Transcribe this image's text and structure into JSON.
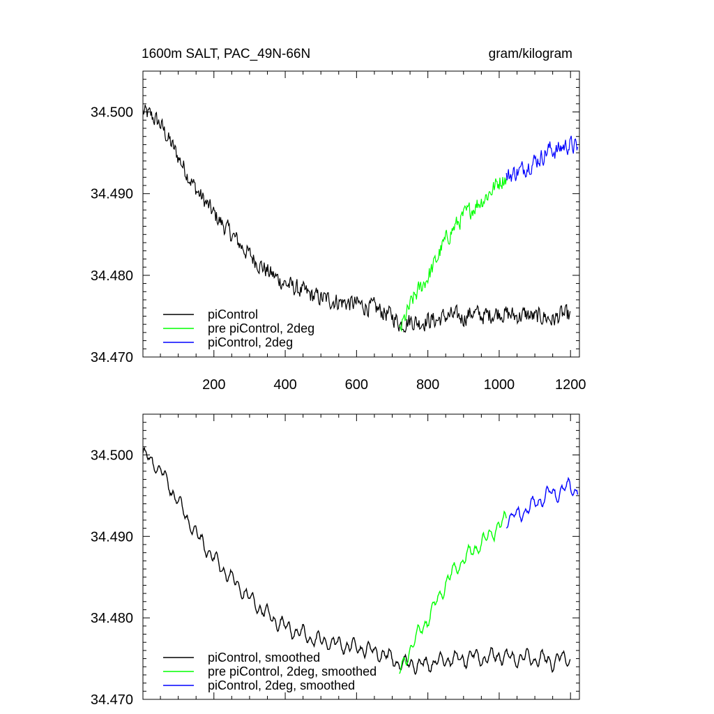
{
  "chart_data": [
    {
      "type": "line",
      "title": "1600m SALT, PAC_49N-66N",
      "units": "gram/kilogram",
      "xlim": [
        1,
        1225
      ],
      "ylim": [
        34.47,
        34.505
      ],
      "x_ticks": [
        200,
        400,
        600,
        800,
        1000,
        1200
      ],
      "x_tick_labels": [
        "200",
        "400",
        "600",
        "800",
        "1000",
        "1200"
      ],
      "y_ticks": [
        34.47,
        34.48,
        34.49,
        34.5
      ],
      "y_tick_labels": [
        "34.470",
        "34.480",
        "34.490",
        "34.500"
      ],
      "legend_position": "bottom-left",
      "series": [
        {
          "name": "piControl",
          "color": "#000000",
          "x": [
            1,
            25,
            50,
            75,
            100,
            125,
            150,
            175,
            200,
            225,
            250,
            275,
            300,
            325,
            350,
            375,
            400,
            425,
            450,
            475,
            500,
            525,
            550,
            575,
            600,
            625,
            650,
            675,
            700,
            725,
            750,
            775,
            800,
            825,
            850,
            875,
            900,
            925,
            950,
            975,
            1000,
            1025,
            1050,
            1075,
            1100,
            1125,
            1150,
            1175,
            1200
          ],
          "y": [
            34.5,
            34.4995,
            34.4985,
            34.4965,
            34.4945,
            34.4925,
            34.4905,
            34.489,
            34.4875,
            34.4862,
            34.485,
            34.4837,
            34.4825,
            34.4815,
            34.4805,
            34.4797,
            34.479,
            34.4785,
            34.478,
            34.4775,
            34.4772,
            34.477,
            34.4768,
            34.4766,
            34.4765,
            34.4762,
            34.476,
            34.4755,
            34.475,
            34.474,
            34.4745,
            34.4742,
            34.4745,
            34.4745,
            34.475,
            34.475,
            34.4748,
            34.4755,
            34.475,
            34.4752,
            34.4755,
            34.4752,
            34.475,
            34.4752,
            34.4748,
            34.475,
            34.4745,
            34.4752,
            34.475
          ]
        },
        {
          "name": "pre piControl, 2deg",
          "color": "#00ff00",
          "x": [
            720,
            740,
            760,
            780,
            800,
            820,
            840,
            860,
            880,
            900,
            920,
            940,
            960,
            980,
            1000,
            1020
          ],
          "y": [
            34.473,
            34.4752,
            34.4772,
            34.4785,
            34.4798,
            34.4815,
            34.4835,
            34.485,
            34.4862,
            34.4872,
            34.488,
            34.4888,
            34.4895,
            34.4905,
            34.4915,
            34.492
          ]
        },
        {
          "name": "piControl, 2deg",
          "color": "#0000ff",
          "x": [
            1020,
            1040,
            1060,
            1080,
            1100,
            1120,
            1140,
            1160,
            1180,
            1200,
            1220
          ],
          "y": [
            34.492,
            34.4925,
            34.4928,
            34.4935,
            34.494,
            34.4945,
            34.4955,
            34.4952,
            34.4958,
            34.496,
            34.4955
          ]
        }
      ]
    },
    {
      "type": "line",
      "xlim": [
        1,
        1225
      ],
      "ylim": [
        34.47,
        34.505
      ],
      "x_ticks": [
        200,
        400,
        600,
        800,
        1000,
        1200
      ],
      "y_ticks": [
        34.47,
        34.48,
        34.49,
        34.5
      ],
      "y_tick_labels": [
        "34.470",
        "34.480",
        "34.490",
        "34.500"
      ],
      "legend_position": "bottom-left",
      "series": [
        {
          "name": "piControl, smoothed",
          "color": "#000000",
          "x": [
            1,
            25,
            50,
            75,
            100,
            125,
            150,
            175,
            200,
            225,
            250,
            275,
            300,
            325,
            350,
            375,
            400,
            425,
            450,
            475,
            500,
            525,
            550,
            575,
            600,
            625,
            650,
            675,
            700,
            725,
            750,
            775,
            800,
            825,
            850,
            875,
            900,
            925,
            950,
            975,
            1000,
            1025,
            1050,
            1075,
            1100,
            1125,
            1150,
            1175,
            1200
          ],
          "y": [
            34.5,
            34.4993,
            34.4982,
            34.4962,
            34.4942,
            34.4922,
            34.4903,
            34.4888,
            34.4873,
            34.486,
            34.4848,
            34.4836,
            34.4824,
            34.4814,
            34.4804,
            34.4796,
            34.479,
            34.4784,
            34.478,
            34.4774,
            34.4772,
            34.477,
            34.4767,
            34.4766,
            34.4764,
            34.4762,
            34.4759,
            34.4755,
            34.475,
            34.4742,
            34.4745,
            34.4742,
            34.4744,
            34.4746,
            34.4749,
            34.475,
            34.4748,
            34.4754,
            34.475,
            34.4752,
            34.4754,
            34.4752,
            34.4749,
            34.4752,
            34.4748,
            34.475,
            34.4746,
            34.4751,
            34.4748
          ]
        },
        {
          "name": "pre piControl, 2deg, smoothed",
          "color": "#00ff00",
          "x": [
            720,
            740,
            760,
            780,
            800,
            820,
            840,
            860,
            880,
            900,
            920,
            940,
            960,
            980,
            1000,
            1020
          ],
          "y": [
            34.4732,
            34.4752,
            34.477,
            34.4786,
            34.4798,
            34.4816,
            34.4834,
            34.4849,
            34.4862,
            34.4872,
            34.488,
            34.4888,
            34.4896,
            34.4904,
            34.4914,
            34.492
          ]
        },
        {
          "name": "piControl, 2deg, smoothed",
          "color": "#0000ff",
          "x": [
            1020,
            1040,
            1060,
            1080,
            1100,
            1120,
            1140,
            1160,
            1180,
            1200,
            1220
          ],
          "y": [
            34.492,
            34.4924,
            34.4928,
            34.4934,
            34.494,
            34.4946,
            34.4954,
            34.4952,
            34.4958,
            34.496,
            34.4956
          ]
        }
      ]
    }
  ]
}
